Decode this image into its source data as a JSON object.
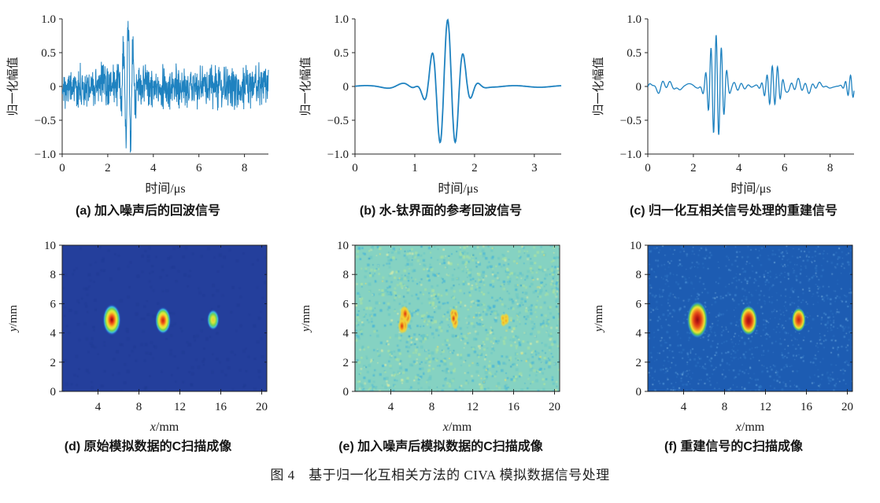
{
  "figure": {
    "caption": "图 4　基于归一化互相关方法的 CIVA 模拟数据信号处理"
  },
  "colors": {
    "line": "#1f82c0",
    "axis": "#262626",
    "text": "#1a1a1a"
  },
  "chart_data": [
    {
      "id": "a",
      "type": "line",
      "caption": "(a) 加入噪声后的回波信号",
      "xlabel": {
        "text": "时间/μs"
      },
      "ylabel": {
        "text": "归一化幅值"
      },
      "xlim": [
        0,
        9.05
      ],
      "ylim": [
        -1,
        1
      ],
      "xticks": [
        [
          0,
          "0"
        ],
        [
          2,
          "2"
        ],
        [
          4,
          "4"
        ],
        [
          6,
          "6"
        ],
        [
          8,
          "8"
        ]
      ],
      "yticks": [
        [
          1,
          "1.0"
        ],
        [
          0.5,
          "0.5"
        ],
        [
          0,
          "0"
        ],
        [
          -0.5,
          "−0.5"
        ],
        [
          -1,
          "−1.0"
        ]
      ],
      "samples": 820,
      "seed": 17,
      "stroke": 1.0,
      "components": [
        {
          "type": "noise",
          "amp": 0.19
        },
        {
          "type": "burst",
          "center": 2.9,
          "sigma": 0.19,
          "freq": 4.7,
          "amp": 1.0,
          "phase": 0
        }
      ]
    },
    {
      "id": "b",
      "type": "line",
      "caption": "(b) 水-钛界面的参考回波信号",
      "xlabel": {
        "text": "时间/μs"
      },
      "ylabel": {
        "text": "归一化幅值"
      },
      "xlim": [
        0,
        3.45
      ],
      "ylim": [
        -1,
        1
      ],
      "xticks": [
        [
          0,
          "0"
        ],
        [
          1,
          "1"
        ],
        [
          2,
          "2"
        ],
        [
          3,
          "3"
        ]
      ],
      "yticks": [
        [
          1,
          "1.0"
        ],
        [
          0.5,
          "0.5"
        ],
        [
          0,
          "0"
        ],
        [
          -0.5,
          "−0.5"
        ],
        [
          -1,
          "−1.0"
        ]
      ],
      "samples": 420,
      "seed": 4,
      "stroke": 1.8,
      "components": [
        {
          "type": "burst",
          "center": 1.55,
          "sigma": 0.21,
          "freq": 3.8,
          "amp": 1.0,
          "phase": 0
        },
        {
          "type": "burst",
          "center": 1.0,
          "sigma": 0.28,
          "freq": 1.8,
          "amp": 0.06,
          "phase": 2.5
        },
        {
          "type": "ripple",
          "amp": 0.012,
          "freq": 1.2,
          "phase": 0.3
        }
      ]
    },
    {
      "id": "c",
      "type": "line",
      "caption": "(c) 归一化互相关信号处理的重建信号",
      "xlabel": {
        "text": "时间/μs"
      },
      "ylabel": {
        "text": "归一化幅值"
      },
      "xlim": [
        0,
        9.05
      ],
      "ylim": [
        -1,
        1
      ],
      "xticks": [
        [
          0,
          "0"
        ],
        [
          2,
          "2"
        ],
        [
          4,
          "4"
        ],
        [
          6,
          "6"
        ],
        [
          8,
          "8"
        ]
      ],
      "yticks": [
        [
          1,
          "1.0"
        ],
        [
          0.5,
          "0.5"
        ],
        [
          0,
          "0"
        ],
        [
          -0.5,
          "−0.5"
        ],
        [
          -1,
          "−1.0"
        ]
      ],
      "samples": 760,
      "seed": 9,
      "stroke": 1.3,
      "components": [
        {
          "type": "ripple",
          "amp": 0.075,
          "freq": 3.2,
          "mod": 0.31,
          "phase": 0.7,
          "mod_phase": 1.2
        },
        {
          "type": "ripple",
          "amp": 0.045,
          "freq": 1.05,
          "mod": 0.19,
          "phase": 2.1
        },
        {
          "type": "burst",
          "center": 3.0,
          "sigma": 0.26,
          "freq": 4.3,
          "amp": 0.82,
          "phase": 0
        },
        {
          "type": "burst",
          "center": 5.5,
          "sigma": 0.28,
          "freq": 4.3,
          "amp": 0.3,
          "phase": 1
        },
        {
          "type": "burst",
          "center": 8.9,
          "sigma": 0.18,
          "freq": 4.3,
          "amp": 0.18,
          "phase": 0
        },
        {
          "type": "burst",
          "center": 0.2,
          "sigma": 0.25,
          "freq": 2.5,
          "amp": 0.1,
          "phase": 0
        }
      ]
    },
    {
      "id": "d",
      "type": "heatmap",
      "caption": "(d) 原始模拟数据的C扫描成像",
      "xlabel": {
        "var": "x",
        "unit": "/mm"
      },
      "ylabel": {
        "var": "y",
        "unit": "/mm"
      },
      "xlim": [
        0.5,
        20.5
      ],
      "ylim": [
        0,
        10
      ],
      "xticks": [
        [
          4,
          "4"
        ],
        [
          8,
          "8"
        ],
        [
          12,
          "12"
        ],
        [
          16,
          "16"
        ],
        [
          20,
          "20"
        ]
      ],
      "yticks": [
        [
          0,
          "0"
        ],
        [
          2,
          "2"
        ],
        [
          4,
          "4"
        ],
        [
          6,
          "6"
        ],
        [
          8,
          "8"
        ],
        [
          10,
          "10"
        ]
      ],
      "bg": "#243f9c",
      "seed": 3,
      "defect_centers_mm": [
        [
          5,
          5
        ],
        [
          10,
          5
        ],
        [
          15,
          5
        ]
      ],
      "speckles": [
        {
          "color": "#1f3a92",
          "count": 260,
          "smin": 2,
          "smax": 4,
          "alpha": 0.5
        }
      ],
      "blobs": [
        {
          "x": 5.35,
          "y": 4.9,
          "rx": 0.9,
          "ry": 1.1,
          "stops": [
            [
              0,
              "#7c0d0d"
            ],
            [
              0.14,
              "#d42312"
            ],
            [
              0.3,
              "#f4731c"
            ],
            [
              0.45,
              "#f6d22c"
            ],
            [
              0.56,
              "#d8ee3e"
            ],
            [
              0.68,
              "#74d44e"
            ],
            [
              0.8,
              "#3cc0e4"
            ],
            [
              0.9,
              "rgba(40,90,200,0.55)"
            ],
            [
              1,
              "rgba(36,63,156,0)"
            ]
          ]
        },
        {
          "x": 10.35,
          "y": 4.85,
          "rx": 0.78,
          "ry": 0.95,
          "stops": [
            [
              0,
              "#c41d10"
            ],
            [
              0.22,
              "#ee5a18"
            ],
            [
              0.42,
              "#f6d22c"
            ],
            [
              0.56,
              "#d8ee3e"
            ],
            [
              0.68,
              "#74d44e"
            ],
            [
              0.8,
              "#3cc0e4"
            ],
            [
              0.9,
              "rgba(40,90,200,0.55)"
            ],
            [
              1,
              "rgba(36,63,156,0)"
            ]
          ]
        },
        {
          "x": 15.25,
          "y": 4.9,
          "rx": 0.6,
          "ry": 0.72,
          "stops": [
            [
              0,
              "#f0c832"
            ],
            [
              0.3,
              "#d8e83c"
            ],
            [
              0.55,
              "#6fd158"
            ],
            [
              0.75,
              "#3cc0e4"
            ],
            [
              0.9,
              "rgba(40,90,200,0.5)"
            ],
            [
              1,
              "rgba(36,63,156,0)"
            ]
          ]
        }
      ]
    },
    {
      "id": "e",
      "type": "heatmap",
      "caption": "(e) 加入噪声后模拟数据的C扫描成像",
      "xlabel": {
        "var": "x",
        "unit": "/mm"
      },
      "ylabel": {
        "var": "y",
        "unit": "/mm"
      },
      "xlim": [
        0.5,
        20.5
      ],
      "ylim": [
        0,
        10
      ],
      "xticks": [
        [
          4,
          "4"
        ],
        [
          8,
          "8"
        ],
        [
          12,
          "12"
        ],
        [
          16,
          "16"
        ],
        [
          20,
          "20"
        ]
      ],
      "yticks": [
        [
          0,
          "0"
        ],
        [
          2,
          "2"
        ],
        [
          4,
          "4"
        ],
        [
          6,
          "6"
        ],
        [
          8,
          "8"
        ],
        [
          10,
          "10"
        ]
      ],
      "bg": "#85d2c2",
      "seed": 29,
      "defect_centers_mm": [
        [
          5,
          5
        ],
        [
          10,
          5
        ],
        [
          15,
          5
        ]
      ],
      "speckles": [
        {
          "color": "#48b6d8",
          "count": 430,
          "smin": 1.5,
          "smax": 3.5,
          "alpha": 0.85
        },
        {
          "color": "#66c6c9",
          "count": 320,
          "smin": 2,
          "smax": 4,
          "alpha": 0.7
        },
        {
          "color": "#abe3a3",
          "count": 340,
          "smin": 2,
          "smax": 4,
          "alpha": 0.8
        },
        {
          "color": "#d9eda9",
          "count": 160,
          "smin": 1.5,
          "smax": 3,
          "alpha": 0.8
        },
        {
          "color": "#2f9fd0",
          "count": 90,
          "smin": 1,
          "smax": 2.5,
          "alpha": 0.8
        },
        {
          "color": "#eae26e",
          "count": 36,
          "smin": 1.5,
          "smax": 2.5,
          "alpha": 0.8
        }
      ],
      "blobs": [
        {
          "x": 5.3,
          "y": 4.9,
          "rx": 0.62,
          "ry": 0.88,
          "jitter": 6,
          "stops": [
            [
              0,
              "#d42a10"
            ],
            [
              0.3,
              "#ee7c1a"
            ],
            [
              0.6,
              "#f4d434"
            ],
            [
              0.85,
              "rgba(244,212,52,0.5)"
            ],
            [
              1,
              "rgba(133,210,194,0)"
            ]
          ]
        },
        {
          "x": 10.3,
          "y": 4.9,
          "rx": 0.5,
          "ry": 0.72,
          "jitter": 6,
          "stops": [
            [
              0,
              "#d42a10"
            ],
            [
              0.3,
              "#ee7c1a"
            ],
            [
              0.6,
              "#f4d434"
            ],
            [
              0.85,
              "rgba(244,212,52,0.5)"
            ],
            [
              1,
              "rgba(133,210,194,0)"
            ]
          ]
        },
        {
          "x": 15.2,
          "y": 4.95,
          "rx": 0.45,
          "ry": 0.5,
          "jitter": 5,
          "stops": [
            [
              0,
              "#ee9c1e"
            ],
            [
              0.45,
              "#f4d434"
            ],
            [
              0.8,
              "rgba(244,212,52,0.5)"
            ],
            [
              1,
              "rgba(133,210,194,0)"
            ]
          ]
        }
      ]
    },
    {
      "id": "f",
      "type": "heatmap",
      "caption": "(f) 重建信号的C扫描成像",
      "xlabel": {
        "var": "x",
        "unit": "/mm"
      },
      "ylabel": {
        "var": "y",
        "unit": "/mm"
      },
      "xlim": [
        0.5,
        20.5
      ],
      "ylim": [
        0,
        10
      ],
      "xticks": [
        [
          4,
          "4"
        ],
        [
          8,
          "8"
        ],
        [
          12,
          "12"
        ],
        [
          16,
          "16"
        ],
        [
          20,
          "20"
        ]
      ],
      "yticks": [
        [
          0,
          "0"
        ],
        [
          2,
          "2"
        ],
        [
          4,
          "4"
        ],
        [
          6,
          "6"
        ],
        [
          8,
          "8"
        ],
        [
          10,
          "10"
        ]
      ],
      "bg": "#1d5cb2",
      "seed": 55,
      "defect_centers_mm": [
        [
          5,
          5
        ],
        [
          10,
          5
        ],
        [
          15,
          5
        ]
      ],
      "speckles": [
        {
          "color": "#4d92d6",
          "count": 520,
          "smin": 1,
          "smax": 2.5,
          "alpha": 0.8
        },
        {
          "color": "#7db8e4",
          "count": 190,
          "smin": 1,
          "smax": 2,
          "alpha": 0.8
        },
        {
          "color": "#2e74c4",
          "count": 420,
          "smin": 1.5,
          "smax": 3,
          "alpha": 0.7
        }
      ],
      "blobs": [
        {
          "x": 5.35,
          "y": 4.9,
          "rx": 1.02,
          "ry": 1.28,
          "stops": [
            [
              0,
              "#8c0f0f"
            ],
            [
              0.2,
              "#c62014"
            ],
            [
              0.4,
              "#e8541a"
            ],
            [
              0.55,
              "#f2a024"
            ],
            [
              0.68,
              "#f2e838"
            ],
            [
              0.8,
              "#62c84e"
            ],
            [
              0.9,
              "rgba(60,180,220,0.5)"
            ],
            [
              1,
              "rgba(29,92,178,0)"
            ]
          ]
        },
        {
          "x": 10.35,
          "y": 4.85,
          "rx": 0.85,
          "ry": 1.02,
          "stops": [
            [
              0,
              "#a31212"
            ],
            [
              0.22,
              "#c62014"
            ],
            [
              0.42,
              "#e8541a"
            ],
            [
              0.57,
              "#f2a024"
            ],
            [
              0.7,
              "#f2e838"
            ],
            [
              0.82,
              "#62c84e"
            ],
            [
              0.92,
              "rgba(60,180,220,0.5)"
            ],
            [
              1,
              "rgba(29,92,178,0)"
            ]
          ]
        },
        {
          "x": 15.25,
          "y": 4.9,
          "rx": 0.68,
          "ry": 0.82,
          "stops": [
            [
              0,
              "#c62014"
            ],
            [
              0.3,
              "#e8541a"
            ],
            [
              0.52,
              "#f2a024"
            ],
            [
              0.68,
              "#f2e838"
            ],
            [
              0.82,
              "#62c84e"
            ],
            [
              0.92,
              "rgba(60,180,220,0.5)"
            ],
            [
              1,
              "rgba(29,92,178,0)"
            ]
          ]
        }
      ]
    }
  ]
}
